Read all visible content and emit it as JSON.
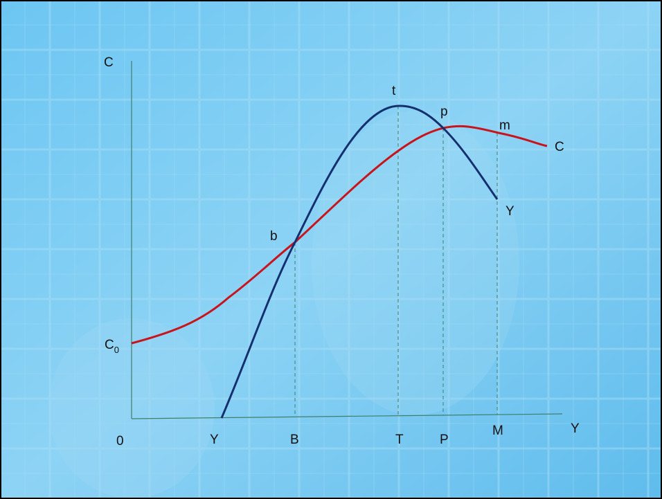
{
  "axis": {
    "y": "C",
    "x": "Y",
    "origin": "0",
    "intercept": {
      "text": "C",
      "sub": "0"
    }
  },
  "x_marks": [
    "Y",
    "B",
    "T",
    "P",
    "M"
  ],
  "curve_points": [
    "b",
    "t",
    "p",
    "m"
  ],
  "curve_labels": [
    "C",
    "Y"
  ]
}
